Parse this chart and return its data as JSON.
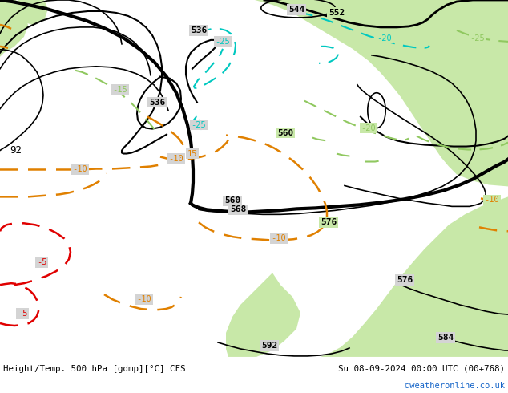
{
  "title_left": "Height/Temp. 500 hPa [gdmp][°C] CFS",
  "title_right": "Su 08-09-2024 00:00 UTC (00+768)",
  "credit": "©weatheronline.co.uk",
  "bg_gray": "#d4d4d4",
  "bg_green": "#c8e8a8",
  "bg_white": "#ffffff",
  "credit_color": "#1464c8",
  "black": "#000000",
  "cyan": "#00c8c0",
  "orange": "#e08000",
  "red": "#e00000",
  "lime": "#90c860"
}
